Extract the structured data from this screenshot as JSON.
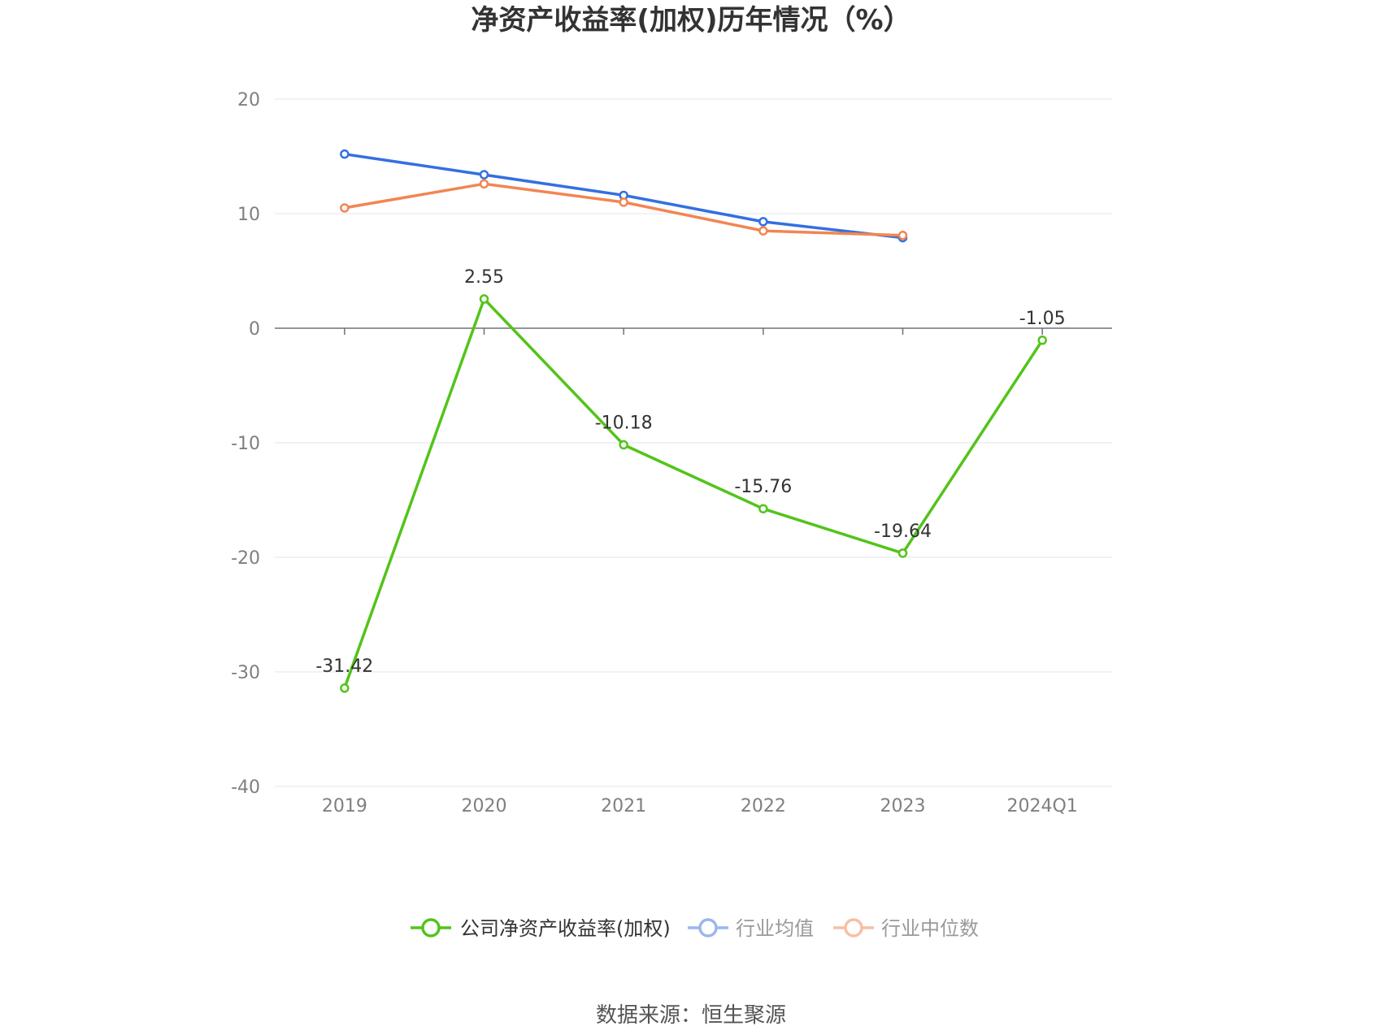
{
  "chart_data": {
    "type": "line",
    "title": "净资产收益率(加权)历年情况（%）",
    "categories": [
      "2019",
      "2020",
      "2021",
      "2022",
      "2023",
      "2024Q1"
    ],
    "ylim": [
      -40,
      20
    ],
    "yticks": [
      20,
      10,
      0,
      -10,
      -20,
      -30,
      -40
    ],
    "grid": true,
    "legend_position": "bottom",
    "series": [
      {
        "name": "公司净资产收益率(加权)",
        "color": "#52c41a",
        "values": [
          -31.42,
          2.55,
          -10.18,
          -15.76,
          -19.64,
          -1.05
        ],
        "labels": [
          "-31.42",
          "2.55",
          "-10.18",
          "-15.76",
          "-19.64",
          "-1.05"
        ]
      },
      {
        "name": "行业均值",
        "color": "#3370e0",
        "legend_color": "#99b7ef",
        "values": [
          15.2,
          13.4,
          11.6,
          9.3,
          7.9,
          null
        ]
      },
      {
        "name": "行业中位数",
        "color": "#f28552",
        "legend_color": "#f7bfa5",
        "values": [
          10.5,
          12.6,
          11.0,
          8.5,
          8.1,
          null
        ]
      }
    ]
  },
  "source": "数据来源：恒生聚源"
}
